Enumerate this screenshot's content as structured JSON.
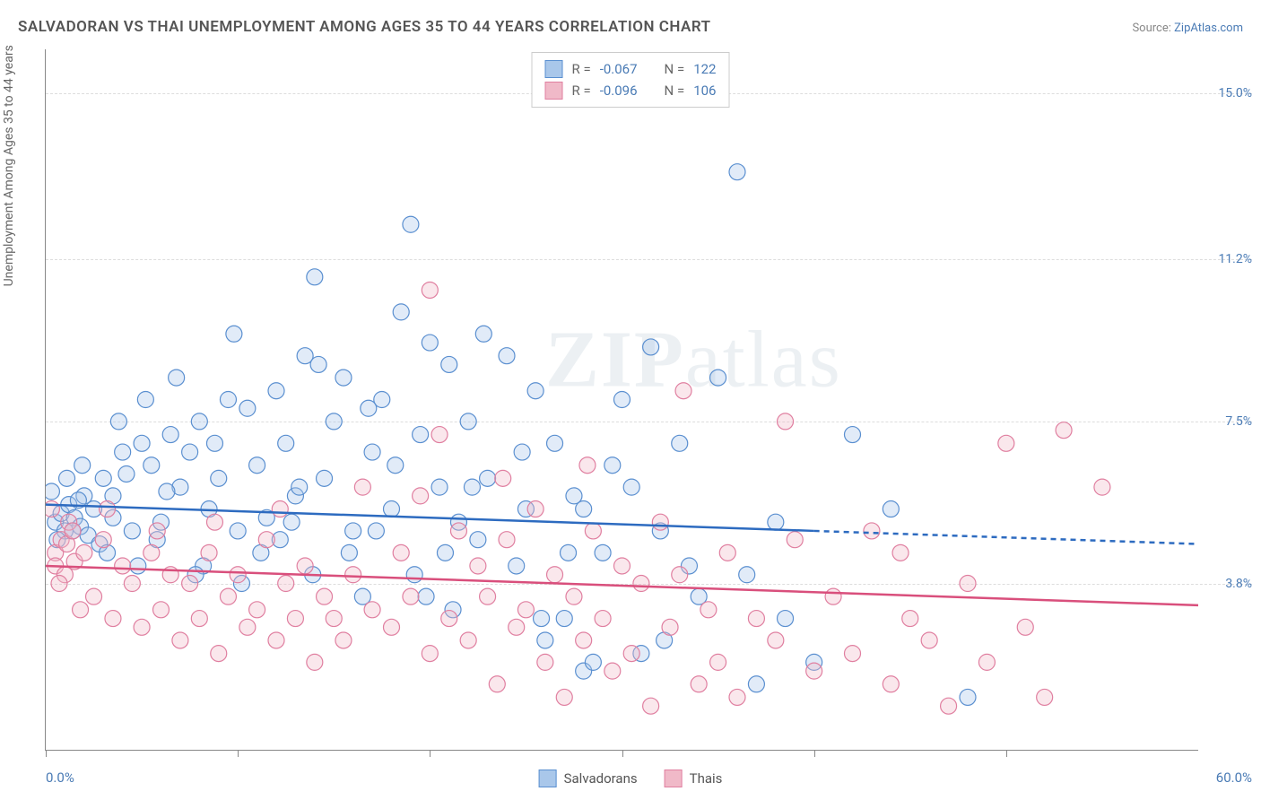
{
  "title": "SALVADORAN VS THAI UNEMPLOYMENT AMONG AGES 35 TO 44 YEARS CORRELATION CHART",
  "source_label": "Source:",
  "source_name": "ZipAtlas.com",
  "ylabel": "Unemployment Among Ages 35 to 44 years",
  "watermark": {
    "part1": "ZIP",
    "part2": "atlas"
  },
  "chart": {
    "type": "scatter",
    "xlim": [
      0,
      60
    ],
    "ylim": [
      0,
      16
    ],
    "x_label_min": "0.0%",
    "x_label_max": "60.0%",
    "xtick_positions": [
      0,
      10,
      20,
      30,
      40,
      50
    ],
    "yticks": [
      {
        "value": 15.0,
        "label": "15.0%"
      },
      {
        "value": 11.2,
        "label": "11.2%"
      },
      {
        "value": 7.5,
        "label": "7.5%"
      },
      {
        "value": 3.8,
        "label": "3.8%"
      }
    ],
    "grid_color": "#dddddd",
    "background_color": "#ffffff",
    "marker_radius": 9,
    "marker_fill_opacity": 0.35,
    "marker_stroke_width": 1.2,
    "series": [
      {
        "name": "Salvadorans",
        "color_fill": "#a9c7ea",
        "color_stroke": "#5a8fd0",
        "trend_color": "#2d6bc0",
        "trend_width": 2.5,
        "R": "-0.067",
        "N": "122",
        "trendline": {
          "x1": 0,
          "y1": 5.6,
          "x2": 60,
          "y2": 4.7,
          "solid_until_x": 40
        },
        "points": [
          [
            0.5,
            5.2
          ],
          [
            0.8,
            5.4
          ],
          [
            1.0,
            5.0
          ],
          [
            1.2,
            5.6
          ],
          [
            1.5,
            5.3
          ],
          [
            1.8,
            5.1
          ],
          [
            2.0,
            5.8
          ],
          [
            2.2,
            4.9
          ],
          [
            2.5,
            5.5
          ],
          [
            2.8,
            4.7
          ],
          [
            0.3,
            5.9
          ],
          [
            0.6,
            4.8
          ],
          [
            1.1,
            6.2
          ],
          [
            1.4,
            5.0
          ],
          [
            1.7,
            5.7
          ],
          [
            3.0,
            6.2
          ],
          [
            3.5,
            5.3
          ],
          [
            4.0,
            6.8
          ],
          [
            4.5,
            5.0
          ],
          [
            5.0,
            7.0
          ],
          [
            5.5,
            6.5
          ],
          [
            6.0,
            5.2
          ],
          [
            6.5,
            7.2
          ],
          [
            7.0,
            6.0
          ],
          [
            3.2,
            4.5
          ],
          [
            3.8,
            7.5
          ],
          [
            4.2,
            6.3
          ],
          [
            5.8,
            4.8
          ],
          [
            6.3,
            5.9
          ],
          [
            7.5,
            6.8
          ],
          [
            8.0,
            7.5
          ],
          [
            8.5,
            5.5
          ],
          [
            9.0,
            6.2
          ],
          [
            9.5,
            8.0
          ],
          [
            10.0,
            5.0
          ],
          [
            10.5,
            7.8
          ],
          [
            11.0,
            6.5
          ],
          [
            11.5,
            5.3
          ],
          [
            12.0,
            8.2
          ],
          [
            12.5,
            7.0
          ],
          [
            13.0,
            5.8
          ],
          [
            13.5,
            9.0
          ],
          [
            14.0,
            10.8
          ],
          [
            14.5,
            6.2
          ],
          [
            15.0,
            7.5
          ],
          [
            15.5,
            8.5
          ],
          [
            16.0,
            5.0
          ],
          [
            8.2,
            4.2
          ],
          [
            9.8,
            9.5
          ],
          [
            11.2,
            4.5
          ],
          [
            17.0,
            6.8
          ],
          [
            17.5,
            8.0
          ],
          [
            18.0,
            5.5
          ],
          [
            18.5,
            10.0
          ],
          [
            19.0,
            12.0
          ],
          [
            19.5,
            7.2
          ],
          [
            20.0,
            9.3
          ],
          [
            20.5,
            6.0
          ],
          [
            21.0,
            8.8
          ],
          [
            21.5,
            5.2
          ],
          [
            22.0,
            7.5
          ],
          [
            22.5,
            4.8
          ],
          [
            23.0,
            6.2
          ],
          [
            24.0,
            9.0
          ],
          [
            25.0,
            5.5
          ],
          [
            25.5,
            8.2
          ],
          [
            26.0,
            2.5
          ],
          [
            26.5,
            7.0
          ],
          [
            27.0,
            3.0
          ],
          [
            28.0,
            1.8
          ],
          [
            28.0,
            5.5
          ],
          [
            29.0,
            4.5
          ],
          [
            30.0,
            8.0
          ],
          [
            31.0,
            2.2
          ],
          [
            32.0,
            5.0
          ],
          [
            33.0,
            7.0
          ],
          [
            34.0,
            3.5
          ],
          [
            35.0,
            8.5
          ],
          [
            36.0,
            13.2
          ],
          [
            37.0,
            1.5
          ],
          [
            38.0,
            5.2
          ],
          [
            42.0,
            7.2
          ],
          [
            48.0,
            1.2
          ],
          [
            13.9,
            4.0
          ],
          [
            16.5,
            3.5
          ],
          [
            19.2,
            4.0
          ],
          [
            22.8,
            9.5
          ],
          [
            24.5,
            4.2
          ],
          [
            27.5,
            5.8
          ],
          [
            29.5,
            6.5
          ],
          [
            31.5,
            9.2
          ],
          [
            6.8,
            8.5
          ],
          [
            10.2,
            3.8
          ],
          [
            13.2,
            6.0
          ],
          [
            15.8,
            4.5
          ],
          [
            18.2,
            6.5
          ],
          [
            21.2,
            3.2
          ],
          [
            24.8,
            6.8
          ],
          [
            28.5,
            2.0
          ],
          [
            33.5,
            4.2
          ],
          [
            7.8,
            4.0
          ],
          [
            12.8,
            5.2
          ],
          [
            16.8,
            7.8
          ],
          [
            20.8,
            4.5
          ],
          [
            25.8,
            3.0
          ],
          [
            30.5,
            6.0
          ],
          [
            36.5,
            4.0
          ],
          [
            40.0,
            2.0
          ],
          [
            44.0,
            5.5
          ],
          [
            3.5,
            5.8
          ],
          [
            5.2,
            8.0
          ],
          [
            8.8,
            7.0
          ],
          [
            12.2,
            4.8
          ],
          [
            17.2,
            5.0
          ],
          [
            22.2,
            6.0
          ],
          [
            27.2,
            4.5
          ],
          [
            32.2,
            2.5
          ],
          [
            38.5,
            3.0
          ],
          [
            14.2,
            8.8
          ],
          [
            19.8,
            3.5
          ],
          [
            1.9,
            6.5
          ],
          [
            4.8,
            4.2
          ]
        ]
      },
      {
        "name": "Thais",
        "color_fill": "#f0b9c8",
        "color_stroke": "#e07fa0",
        "trend_color": "#d94f7c",
        "trend_width": 2.5,
        "R": "-0.096",
        "N": "106",
        "trendline": {
          "x1": 0,
          "y1": 4.2,
          "x2": 60,
          "y2": 3.3,
          "solid_until_x": 60
        },
        "points": [
          [
            0.5,
            4.5
          ],
          [
            0.5,
            4.2
          ],
          [
            0.8,
            4.8
          ],
          [
            1.0,
            4.0
          ],
          [
            1.2,
            5.2
          ],
          [
            1.5,
            4.3
          ],
          [
            0.3,
            5.5
          ],
          [
            0.7,
            3.8
          ],
          [
            1.1,
            4.7
          ],
          [
            1.4,
            5.0
          ],
          [
            2.0,
            4.5
          ],
          [
            2.5,
            3.5
          ],
          [
            3.0,
            4.8
          ],
          [
            3.5,
            3.0
          ],
          [
            4.0,
            4.2
          ],
          [
            4.5,
            3.8
          ],
          [
            5.0,
            2.8
          ],
          [
            5.5,
            4.5
          ],
          [
            6.0,
            3.2
          ],
          [
            6.5,
            4.0
          ],
          [
            7.0,
            2.5
          ],
          [
            7.5,
            3.8
          ],
          [
            8.0,
            3.0
          ],
          [
            8.5,
            4.5
          ],
          [
            9.0,
            2.2
          ],
          [
            9.5,
            3.5
          ],
          [
            10.0,
            4.0
          ],
          [
            10.5,
            2.8
          ],
          [
            11.0,
            3.2
          ],
          [
            11.5,
            4.8
          ],
          [
            12.0,
            2.5
          ],
          [
            12.5,
            3.8
          ],
          [
            13.0,
            3.0
          ],
          [
            13.5,
            4.2
          ],
          [
            14.0,
            2.0
          ],
          [
            14.5,
            3.5
          ],
          [
            15.0,
            3.0
          ],
          [
            15.5,
            2.5
          ],
          [
            16.0,
            4.0
          ],
          [
            17.0,
            3.2
          ],
          [
            18.0,
            2.8
          ],
          [
            18.5,
            4.5
          ],
          [
            19.0,
            3.5
          ],
          [
            20.0,
            2.2
          ],
          [
            20.0,
            10.5
          ],
          [
            20.5,
            7.2
          ],
          [
            21.0,
            3.0
          ],
          [
            21.5,
            5.0
          ],
          [
            22.0,
            2.5
          ],
          [
            22.5,
            4.2
          ],
          [
            23.0,
            3.5
          ],
          [
            23.5,
            1.5
          ],
          [
            24.0,
            4.8
          ],
          [
            24.5,
            2.8
          ],
          [
            25.0,
            3.2
          ],
          [
            25.5,
            5.5
          ],
          [
            26.0,
            2.0
          ],
          [
            26.5,
            4.0
          ],
          [
            27.0,
            1.2
          ],
          [
            27.5,
            3.5
          ],
          [
            28.0,
            2.5
          ],
          [
            28.5,
            5.0
          ],
          [
            29.0,
            3.0
          ],
          [
            29.5,
            1.8
          ],
          [
            30.0,
            4.2
          ],
          [
            30.5,
            2.2
          ],
          [
            31.0,
            3.8
          ],
          [
            31.5,
            1.0
          ],
          [
            32.0,
            5.2
          ],
          [
            32.5,
            2.8
          ],
          [
            33.0,
            4.0
          ],
          [
            34.0,
            1.5
          ],
          [
            34.5,
            3.2
          ],
          [
            35.0,
            2.0
          ],
          [
            35.5,
            4.5
          ],
          [
            36.0,
            1.2
          ],
          [
            37.0,
            3.0
          ],
          [
            38.0,
            2.5
          ],
          [
            39.0,
            4.8
          ],
          [
            40.0,
            1.8
          ],
          [
            41.0,
            3.5
          ],
          [
            42.0,
            2.2
          ],
          [
            43.0,
            5.0
          ],
          [
            44.0,
            1.5
          ],
          [
            45.0,
            3.0
          ],
          [
            46.0,
            2.5
          ],
          [
            47.0,
            1.0
          ],
          [
            48.0,
            3.8
          ],
          [
            49.0,
            2.0
          ],
          [
            50.0,
            7.0
          ],
          [
            51.0,
            2.8
          ],
          [
            52.0,
            1.2
          ],
          [
            53.0,
            7.3
          ],
          [
            55.0,
            6.0
          ],
          [
            1.8,
            3.2
          ],
          [
            3.2,
            5.5
          ],
          [
            5.8,
            5.0
          ],
          [
            8.8,
            5.2
          ],
          [
            12.2,
            5.5
          ],
          [
            16.5,
            6.0
          ],
          [
            19.5,
            5.8
          ],
          [
            23.8,
            6.2
          ],
          [
            28.2,
            6.5
          ],
          [
            33.2,
            8.2
          ],
          [
            38.5,
            7.5
          ],
          [
            44.5,
            4.5
          ]
        ]
      }
    ]
  },
  "legend_bottom": [
    {
      "label": "Salvadorans",
      "fill": "#a9c7ea",
      "stroke": "#5a8fd0"
    },
    {
      "label": "Thais",
      "fill": "#f0b9c8",
      "stroke": "#e07fa0"
    }
  ],
  "legend_top": {
    "r_label": "R =",
    "n_label": "N ="
  }
}
